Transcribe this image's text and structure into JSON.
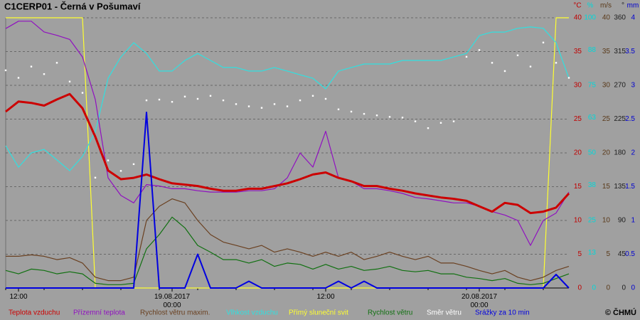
{
  "chart_data": {
    "type": "line",
    "title": "C1CERP01 - Černá v Pošumaví",
    "copyright": "© ČHMÚ",
    "grid": true,
    "xlim": [
      -1,
      43
    ],
    "xticks": [
      {
        "value": 0,
        "label": "12:00"
      },
      {
        "value": 12,
        "label": "19.08.2017 00:00"
      },
      {
        "value": 24,
        "label": "12:00"
      },
      {
        "value": 36,
        "label": "20.08.2017 00:00"
      }
    ],
    "x": [
      -1,
      0,
      1,
      2,
      3,
      4,
      5,
      6,
      7,
      8,
      9,
      10,
      11,
      12,
      13,
      14,
      15,
      16,
      17,
      18,
      19,
      20,
      21,
      22,
      23,
      24,
      25,
      26,
      27,
      28,
      29,
      30,
      31,
      32,
      33,
      34,
      35,
      36,
      37,
      38,
      39,
      40,
      41,
      42,
      43
    ],
    "axes": [
      {
        "unit": "°C",
        "lim": [
          0,
          40
        ],
        "ticks": [
          0,
          5,
          10,
          15,
          20,
          25,
          30,
          35,
          40
        ],
        "color": "#c00000"
      },
      {
        "unit": "%",
        "lim": [
          0,
          100
        ],
        "ticks": [
          0,
          13,
          25,
          38,
          50,
          63,
          75,
          88,
          100
        ],
        "color": "#00d8d8"
      },
      {
        "unit": "m/s",
        "lim": [
          0,
          40
        ],
        "ticks": [
          0,
          5,
          10,
          15,
          20,
          25,
          30,
          35,
          40
        ],
        "color": "#5a3a1a"
      },
      {
        "unit": "°",
        "lim": [
          0,
          360
        ],
        "ticks": [
          0,
          45,
          90,
          135,
          180,
          225,
          270,
          315,
          360
        ],
        "color": "#202020"
      },
      {
        "unit": "mm",
        "lim": [
          0,
          4
        ],
        "ticks": [
          0,
          0.5,
          1,
          1.5,
          2,
          2.5,
          3,
          3.5,
          4
        ],
        "color": "#0000d0"
      }
    ],
    "series": [
      {
        "name": "Teplota vzduchu",
        "color": "#cc0000",
        "axis": 0,
        "style": "thick",
        "values": [
          26.1,
          27.6,
          27.4,
          27,
          27.9,
          28.7,
          26.6,
          22.4,
          17.4,
          16.1,
          16.3,
          16.8,
          16.1,
          15.5,
          15.3,
          15.1,
          14.7,
          14.4,
          14.4,
          14.7,
          14.7,
          15.1,
          15.5,
          16.1,
          16.8,
          17.1,
          16.3,
          15.8,
          15.1,
          15.1,
          14.7,
          14.4,
          14,
          13.7,
          13.4,
          13.2,
          12.9,
          12.1,
          11.3,
          12.6,
          12.3,
          11.1,
          11.3,
          11.9,
          14
        ]
      },
      {
        "name": "Přízemní teplota",
        "color": "#9010c0",
        "axis": 0,
        "style": "line",
        "values": [
          38.4,
          39.5,
          39.5,
          37.9,
          37.4,
          36.8,
          34.2,
          27.9,
          16.3,
          13.7,
          12.6,
          15.3,
          15.1,
          14.7,
          14.7,
          14.4,
          14.2,
          14.2,
          14.2,
          14.4,
          14.4,
          14.7,
          16.3,
          20,
          17.9,
          23.2,
          16.3,
          15.8,
          14.7,
          14.7,
          14.4,
          14,
          13.4,
          13.2,
          12.9,
          12.6,
          12.6,
          12.1,
          11.3,
          10.8,
          10,
          6.3,
          10,
          11.1,
          14.2
        ]
      },
      {
        "name": "Rychlost větru maxim.",
        "color": "#6a4020",
        "axis": 2,
        "style": "line",
        "values": [
          4.7,
          4.7,
          4.9,
          4.7,
          4.2,
          4.5,
          3.7,
          1.6,
          1.1,
          1.1,
          1.6,
          10,
          12.1,
          13.2,
          12.6,
          10,
          7.9,
          6.8,
          6.3,
          5.8,
          6.3,
          5.3,
          5.8,
          5.3,
          4.7,
          5.3,
          4.7,
          5.3,
          4.2,
          4.7,
          5.3,
          4.7,
          4.2,
          4.7,
          3.7,
          3.7,
          3.2,
          2.6,
          2.1,
          2.6,
          1.6,
          1.1,
          1.6,
          2.6,
          3.2
        ]
      },
      {
        "name": "Vlhkost vzduchu",
        "color": "#30e0e0",
        "axis": 1,
        "style": "line",
        "values": [
          52.6,
          44.7,
          50,
          51.3,
          47.4,
          43.4,
          48.7,
          57.9,
          77.6,
          85.5,
          90.8,
          86.8,
          80.3,
          80.3,
          84.2,
          86.8,
          84.2,
          81.6,
          81.6,
          80.3,
          80.3,
          81.6,
          80.3,
          78.9,
          77.6,
          73.7,
          80.3,
          81.6,
          82.9,
          82.9,
          82.9,
          84.2,
          84.2,
          84.2,
          84.2,
          85.5,
          86.8,
          93.4,
          94.7,
          94.7,
          96.1,
          96.6,
          96.1,
          90.8,
          77.6
        ]
      },
      {
        "name": "Přímý sluneční svit",
        "color": "#ffff30",
        "axis": 1,
        "style": "line",
        "values": [
          100,
          100,
          100,
          100,
          100,
          100,
          100,
          0,
          0,
          0,
          0,
          0,
          0,
          0,
          0,
          0,
          0,
          0,
          0,
          0,
          0,
          0,
          0,
          0,
          0,
          0,
          0,
          0,
          0,
          0,
          0,
          0,
          0,
          0,
          0,
          0,
          0,
          0,
          0,
          0,
          0,
          0,
          0,
          100,
          100
        ]
      },
      {
        "name": "Rychlost větru",
        "color": "#107010",
        "axis": 2,
        "style": "line",
        "values": [
          2.6,
          2.1,
          2.8,
          2.6,
          2.1,
          2.4,
          2.1,
          0.7,
          0.5,
          0.5,
          0.7,
          5.8,
          7.9,
          10.5,
          8.9,
          6.3,
          5.3,
          4.2,
          4.2,
          3.7,
          4.2,
          3.2,
          3.7,
          3.5,
          2.8,
          3.5,
          2.8,
          3.2,
          2.6,
          2.8,
          3.2,
          2.6,
          2.4,
          2.6,
          2.1,
          2.1,
          1.6,
          1.4,
          1.1,
          1.4,
          0.7,
          0.5,
          0.7,
          1.4,
          2.1
        ]
      },
      {
        "name": "Směr větru",
        "color": "#ffffff",
        "axis": 3,
        "style": "dots",
        "values": [
          290,
          280,
          295,
          285,
          300,
          275,
          260,
          147,
          170,
          156,
          165,
          250,
          251,
          248,
          255,
          252,
          256,
          250,
          245,
          242,
          240,
          245,
          242,
          250,
          256,
          252,
          238,
          235,
          232,
          230,
          228,
          227,
          222,
          213,
          220,
          222,
          308,
          317,
          300,
          289,
          310,
          295,
          327,
          300,
          280
        ]
      },
      {
        "name": "Srážky za 10 min",
        "color": "#0000e0",
        "axis": 4,
        "style": "line",
        "values": [
          0,
          0,
          0,
          0,
          0,
          0,
          0,
          0,
          0,
          0,
          0,
          2.6,
          0,
          0,
          0,
          0.5,
          0,
          0,
          0,
          0.1,
          0,
          0,
          0,
          0,
          0,
          0,
          0.1,
          0,
          0.1,
          0,
          0,
          0,
          0,
          0,
          0,
          0,
          0,
          0,
          0,
          0,
          0,
          0,
          0,
          0.2,
          0
        ]
      }
    ]
  }
}
